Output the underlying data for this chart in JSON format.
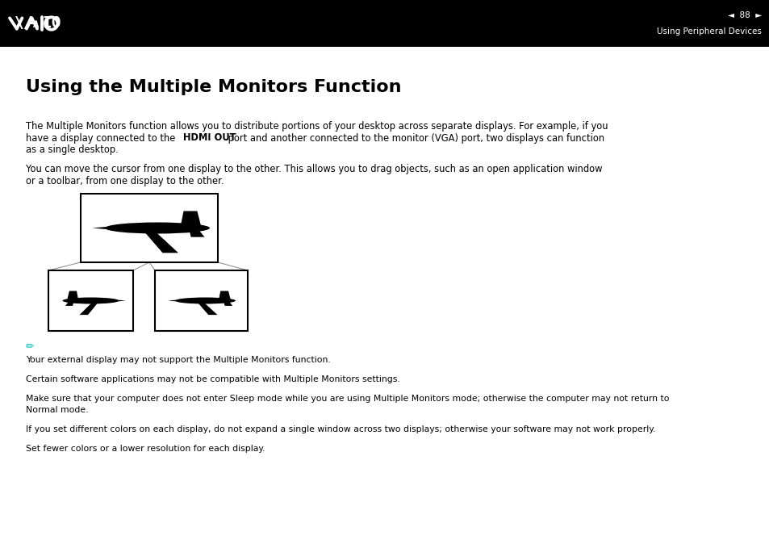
{
  "bg_color": "#ffffff",
  "header_bg": "#000000",
  "page_number": "88",
  "header_right_text": "Using Peripheral Devices",
  "title": "Using the Multiple Monitors Function",
  "title_fontsize": 16,
  "body_text_fontsize": 8.3,
  "note_icon_color": "#00bbbb",
  "note1": "Your external display may not support the Multiple Monitors function.",
  "note2": "Certain software applications may not be compatible with Multiple Monitors settings.",
  "note3_l1": "Make sure that your computer does not enter Sleep mode while you are using Multiple Monitors mode; otherwise the computer may not return to",
  "note3_l2": "Normal mode.",
  "note4": "If you set different colors on each display, do not expand a single window across two displays; otherwise your software may not work properly.",
  "note5": "Set fewer colors or a lower resolution for each display.",
  "text_color": "#000000"
}
